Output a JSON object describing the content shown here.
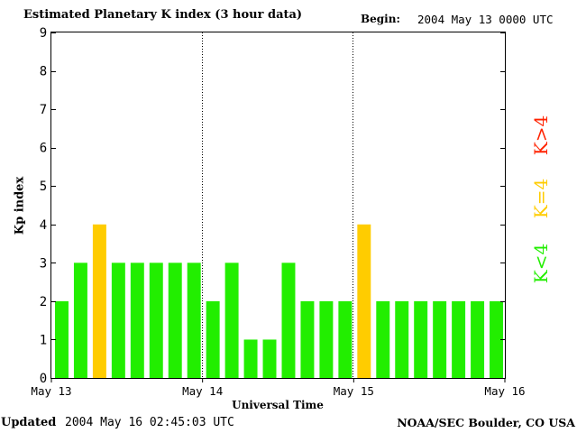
{
  "header": {
    "title": "Estimated Planetary K index (3 hour data)",
    "begin_label": "Begin:",
    "begin_value": "2004 May 13 0000 UTC"
  },
  "footer": {
    "updated_label": "Updated",
    "updated_value": "2004 May 16 02:45:03 UTC",
    "credit": "NOAA/SEC Boulder, CO USA"
  },
  "colors": {
    "low": "#22ee00",
    "equal": "#ffcc00",
    "high": "#ff2200"
  },
  "legend": {
    "low": "K<4",
    "equal": "K=4",
    "high": "K>4"
  },
  "chart_data": {
    "type": "bar",
    "title": "Estimated Planetary K index (3 hour data)",
    "xlabel": "Universal Time",
    "ylabel": "Kp index",
    "ylim": [
      0,
      9
    ],
    "yticks": [
      0,
      1,
      2,
      3,
      4,
      5,
      6,
      7,
      8,
      9
    ],
    "xticks": [
      "May 13",
      "May 14",
      "May 15",
      "May 16"
    ],
    "interval_hours": 3,
    "values": [
      2,
      3,
      4,
      3,
      3,
      3,
      3,
      3,
      2,
      3,
      1,
      1,
      3,
      2,
      2,
      2,
      4,
      2,
      2,
      2,
      2,
      2,
      2,
      2
    ]
  }
}
